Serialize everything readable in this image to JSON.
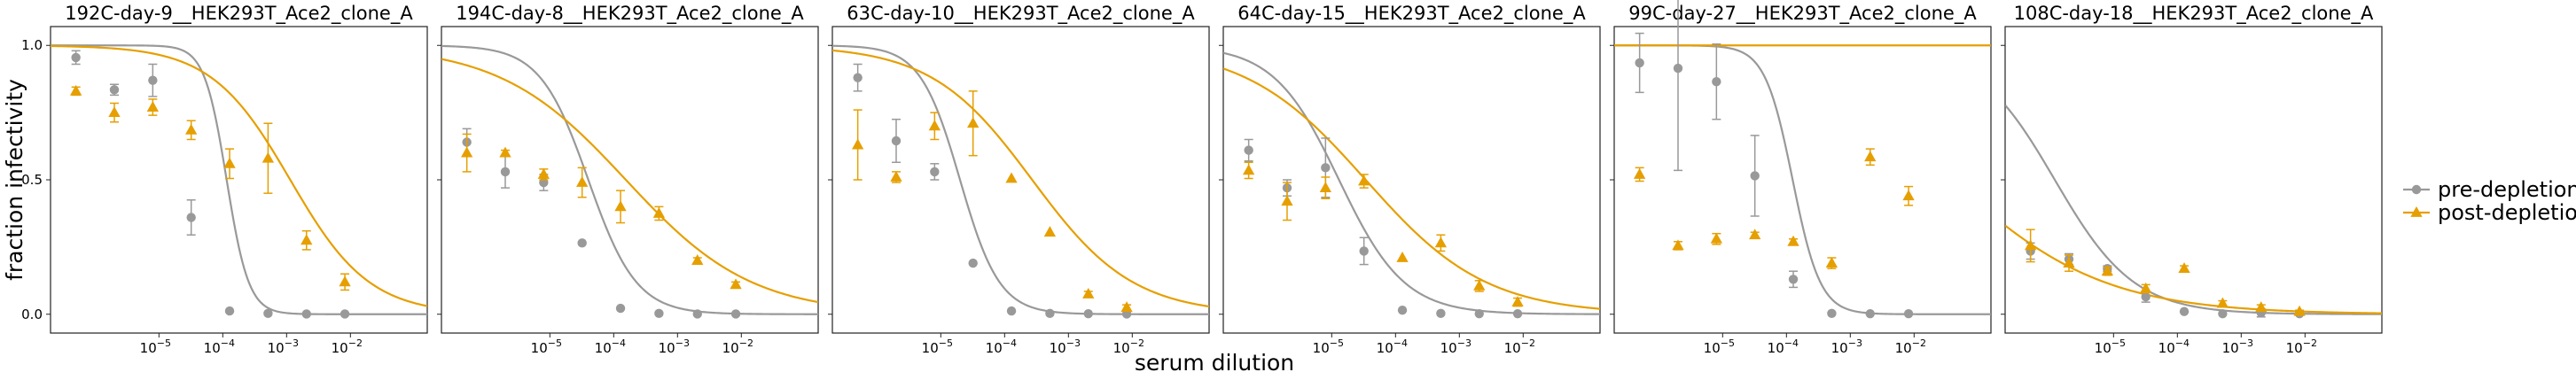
{
  "colors": {
    "pre": "#999999",
    "post": "#E69F00"
  },
  "chart_data": {
    "type": "scatter",
    "xscale": "log",
    "xlabel": "serum dilution",
    "ylabel": "fraction infectivity",
    "xlim": [
      2e-07,
      0.16
    ],
    "ylim": [
      -0.07,
      1.07
    ],
    "xticks": [
      {
        "value": 1e-05,
        "mant": "10",
        "exp": "−5"
      },
      {
        "value": 0.0001,
        "mant": "10",
        "exp": "−4"
      },
      {
        "value": 0.001,
        "mant": "10",
        "exp": "−3"
      },
      {
        "value": 0.01,
        "mant": "10",
        "exp": "−2"
      }
    ],
    "yticks": [
      {
        "value": 0.0,
        "label": "0.0"
      },
      {
        "value": 0.5,
        "label": "0.5"
      },
      {
        "value": 1.0,
        "label": "1.0"
      }
    ],
    "grid": false,
    "legend": {
      "placement": "right",
      "items": [
        {
          "label": "pre-depletion",
          "series": "pre",
          "marker": "circle"
        },
        {
          "label": "post-depletion",
          "series": "post",
          "marker": "triangle"
        }
      ]
    },
    "panels": [
      {
        "title": "192C-day-9__HEK293T_Ace2_clone_A",
        "series": [
          {
            "key": "pre",
            "ic50": 0.000115,
            "hill": 2.5,
            "top": 1.0,
            "points": [
              {
                "x": 5e-07,
                "y": 0.955,
                "err": 0.025
              },
              {
                "x": 2e-06,
                "y": 0.835,
                "err": 0.02
              },
              {
                "x": 8e-06,
                "y": 0.87,
                "err": 0.06
              },
              {
                "x": 3.2e-05,
                "y": 0.36,
                "err": 0.065
              },
              {
                "x": 0.000128,
                "y": 0.012,
                "err": 0
              },
              {
                "x": 0.000512,
                "y": 0.003,
                "err": 0
              },
              {
                "x": 0.00205,
                "y": 0.001,
                "err": 0
              },
              {
                "x": 0.00819,
                "y": 0.001,
                "err": 0
              }
            ]
          },
          {
            "key": "post",
            "ic50": 0.00114,
            "hill": 0.7,
            "top": 1.0,
            "points": [
              {
                "x": 5e-07,
                "y": 0.83,
                "err": 0.015
              },
              {
                "x": 2e-06,
                "y": 0.75,
                "err": 0.035
              },
              {
                "x": 8e-06,
                "y": 0.77,
                "err": 0.03
              },
              {
                "x": 3.2e-05,
                "y": 0.685,
                "err": 0.035
              },
              {
                "x": 0.000128,
                "y": 0.56,
                "err": 0.055
              },
              {
                "x": 0.000512,
                "y": 0.58,
                "err": 0.13
              },
              {
                "x": 0.00205,
                "y": 0.275,
                "err": 0.035
              },
              {
                "x": 0.00819,
                "y": 0.12,
                "err": 0.03
              }
            ]
          }
        ]
      },
      {
        "title": "194C-day-8__HEK293T_Ace2_clone_A",
        "series": [
          {
            "key": "pre",
            "ic50": 4e-05,
            "hill": 1.15,
            "top": 1.0,
            "points": [
              {
                "x": 5e-07,
                "y": 0.64,
                "err": 0.05
              },
              {
                "x": 2e-06,
                "y": 0.53,
                "err": 0.06
              },
              {
                "x": 8e-06,
                "y": 0.49,
                "err": 0.03
              },
              {
                "x": 3.2e-05,
                "y": 0.265,
                "err": 0
              },
              {
                "x": 0.000128,
                "y": 0.022,
                "err": 0
              },
              {
                "x": 0.000512,
                "y": 0.003,
                "err": 0
              },
              {
                "x": 0.00205,
                "y": 0.001,
                "err": 0
              },
              {
                "x": 0.00819,
                "y": 0.001,
                "err": 0
              }
            ]
          },
          {
            "key": "post",
            "ic50": 0.000155,
            "hill": 0.44,
            "top": 1.0,
            "points": [
              {
                "x": 5e-07,
                "y": 0.6,
                "err": 0.07
              },
              {
                "x": 2e-06,
                "y": 0.6,
                "err": 0.01
              },
              {
                "x": 8e-06,
                "y": 0.52,
                "err": 0.02
              },
              {
                "x": 3.2e-05,
                "y": 0.49,
                "err": 0.055
              },
              {
                "x": 0.000128,
                "y": 0.4,
                "err": 0.06
              },
              {
                "x": 0.000512,
                "y": 0.375,
                "err": 0.025
              },
              {
                "x": 0.00205,
                "y": 0.2,
                "err": 0.01
              },
              {
                "x": 0.00819,
                "y": 0.11,
                "err": 0.01
              }
            ]
          }
        ]
      },
      {
        "title": "63C-day-10__HEK293T_Ace2_clone_A",
        "series": [
          {
            "key": "pre",
            "ic50": 2e-05,
            "hill": 1.4,
            "top": 1.0,
            "points": [
              {
                "x": 5e-07,
                "y": 0.88,
                "err": 0.05
              },
              {
                "x": 2e-06,
                "y": 0.645,
                "err": 0.08
              },
              {
                "x": 8e-06,
                "y": 0.53,
                "err": 0.03
              },
              {
                "x": 3.2e-05,
                "y": 0.19,
                "err": 0
              },
              {
                "x": 0.000128,
                "y": 0.012,
                "err": 0
              },
              {
                "x": 0.000512,
                "y": 0.003,
                "err": 0
              },
              {
                "x": 0.00205,
                "y": 0.002,
                "err": 0
              },
              {
                "x": 0.00819,
                "y": 0.001,
                "err": 0
              }
            ]
          },
          {
            "key": "post",
            "ic50": 0.00027,
            "hill": 0.55,
            "top": 1.0,
            "points": [
              {
                "x": 5e-07,
                "y": 0.63,
                "err": 0.13
              },
              {
                "x": 2e-06,
                "y": 0.51,
                "err": 0.02
              },
              {
                "x": 8e-06,
                "y": 0.7,
                "err": 0.05
              },
              {
                "x": 3.2e-05,
                "y": 0.71,
                "err": 0.12
              },
              {
                "x": 0.000128,
                "y": 0.505,
                "err": 0
              },
              {
                "x": 0.000512,
                "y": 0.305,
                "err": 0
              },
              {
                "x": 0.00205,
                "y": 0.075,
                "err": 0.01
              },
              {
                "x": 0.00819,
                "y": 0.025,
                "err": 0.01
              }
            ]
          }
        ]
      },
      {
        "title": "64C-day-15__HEK293T_Ace2_clone_A",
        "series": [
          {
            "key": "pre",
            "ic50": 1.3e-05,
            "hill": 0.85,
            "top": 1.0,
            "points": [
              {
                "x": 5e-07,
                "y": 0.61,
                "err": 0.04
              },
              {
                "x": 2e-06,
                "y": 0.47,
                "err": 0.03
              },
              {
                "x": 8e-06,
                "y": 0.545,
                "err": 0.11
              },
              {
                "x": 3.2e-05,
                "y": 0.235,
                "err": 0.05
              },
              {
                "x": 0.000128,
                "y": 0.015,
                "err": 0
              },
              {
                "x": 0.000512,
                "y": 0.003,
                "err": 0
              },
              {
                "x": 0.00205,
                "y": 0.002,
                "err": 0
              },
              {
                "x": 0.00819,
                "y": 0.002,
                "err": 0
              }
            ]
          },
          {
            "key": "post",
            "ic50": 3.4e-05,
            "hill": 0.46,
            "top": 1.0,
            "points": [
              {
                "x": 5e-07,
                "y": 0.535,
                "err": 0.03
              },
              {
                "x": 2e-06,
                "y": 0.42,
                "err": 0.07
              },
              {
                "x": 8e-06,
                "y": 0.47,
                "err": 0.04
              },
              {
                "x": 3.2e-05,
                "y": 0.495,
                "err": 0.025
              },
              {
                "x": 0.000128,
                "y": 0.21,
                "err": 0
              },
              {
                "x": 0.000512,
                "y": 0.265,
                "err": 0.03
              },
              {
                "x": 0.00205,
                "y": 0.105,
                "err": 0.02
              },
              {
                "x": 0.00819,
                "y": 0.045,
                "err": 0.015
              }
            ]
          }
        ]
      },
      {
        "title": "99C-day-27__HEK293T_Ace2_clone_A",
        "series": [
          {
            "key": "pre",
            "ic50": 0.000125,
            "hill": 2.0,
            "top": 1.0,
            "points": [
              {
                "x": 5e-07,
                "y": 0.935,
                "err": 0.11
              },
              {
                "x": 2e-06,
                "y": 0.915,
                "err": 0.38
              },
              {
                "x": 8e-06,
                "y": 0.865,
                "err": 0.14
              },
              {
                "x": 3.2e-05,
                "y": 0.515,
                "err": 0.15
              },
              {
                "x": 0.000128,
                "y": 0.13,
                "err": 0.03
              },
              {
                "x": 0.000512,
                "y": 0.003,
                "err": 0
              },
              {
                "x": 0.00205,
                "y": 0.002,
                "err": 0
              },
              {
                "x": 0.00819,
                "y": 0.002,
                "err": 0
              }
            ]
          },
          {
            "key": "post",
            "flat": 1.0,
            "points": [
              {
                "x": 5e-07,
                "y": 0.52,
                "err": 0.025
              },
              {
                "x": 2e-06,
                "y": 0.255,
                "err": 0.015
              },
              {
                "x": 8e-06,
                "y": 0.28,
                "err": 0.02
              },
              {
                "x": 3.2e-05,
                "y": 0.295,
                "err": 0.01
              },
              {
                "x": 0.000128,
                "y": 0.27,
                "err": 0.01
              },
              {
                "x": 0.000512,
                "y": 0.19,
                "err": 0.02
              },
              {
                "x": 0.00205,
                "y": 0.585,
                "err": 0.03
              },
              {
                "x": 0.00819,
                "y": 0.44,
                "err": 0.035
              }
            ]
          }
        ]
      },
      {
        "title": "108C-day-18__HEK293T_Ace2_clone_A",
        "series": [
          {
            "key": "pre",
            "ic50": 1.2e-06,
            "hill": 0.7,
            "top": 1.0,
            "points": [
              {
                "x": 5e-07,
                "y": 0.235,
                "err": 0.03
              },
              {
                "x": 2e-06,
                "y": 0.205,
                "err": 0.02
              },
              {
                "x": 8e-06,
                "y": 0.17,
                "err": 0.01
              },
              {
                "x": 3.2e-05,
                "y": 0.065,
                "err": 0.02
              },
              {
                "x": 0.000128,
                "y": 0.01,
                "err": 0
              },
              {
                "x": 0.000512,
                "y": 0.002,
                "err": 0
              },
              {
                "x": 0.00205,
                "y": 0.005,
                "err": 0.015
              },
              {
                "x": 0.00819,
                "y": 0.002,
                "err": 0
              }
            ]
          },
          {
            "key": "post",
            "ic50": 2.8e-08,
            "hill": 0.36,
            "top": 1.0,
            "points": [
              {
                "x": 5e-07,
                "y": 0.255,
                "err": 0.06
              },
              {
                "x": 2e-06,
                "y": 0.19,
                "err": 0.03
              },
              {
                "x": 8e-06,
                "y": 0.16,
                "err": 0.015
              },
              {
                "x": 3.2e-05,
                "y": 0.095,
                "err": 0.015
              },
              {
                "x": 0.000128,
                "y": 0.17,
                "err": 0.01
              },
              {
                "x": 0.000512,
                "y": 0.04,
                "err": 0.01
              },
              {
                "x": 0.00205,
                "y": 0.025,
                "err": 0.01
              },
              {
                "x": 0.00819,
                "y": 0.01,
                "err": 0.005
              }
            ]
          }
        ]
      }
    ]
  }
}
